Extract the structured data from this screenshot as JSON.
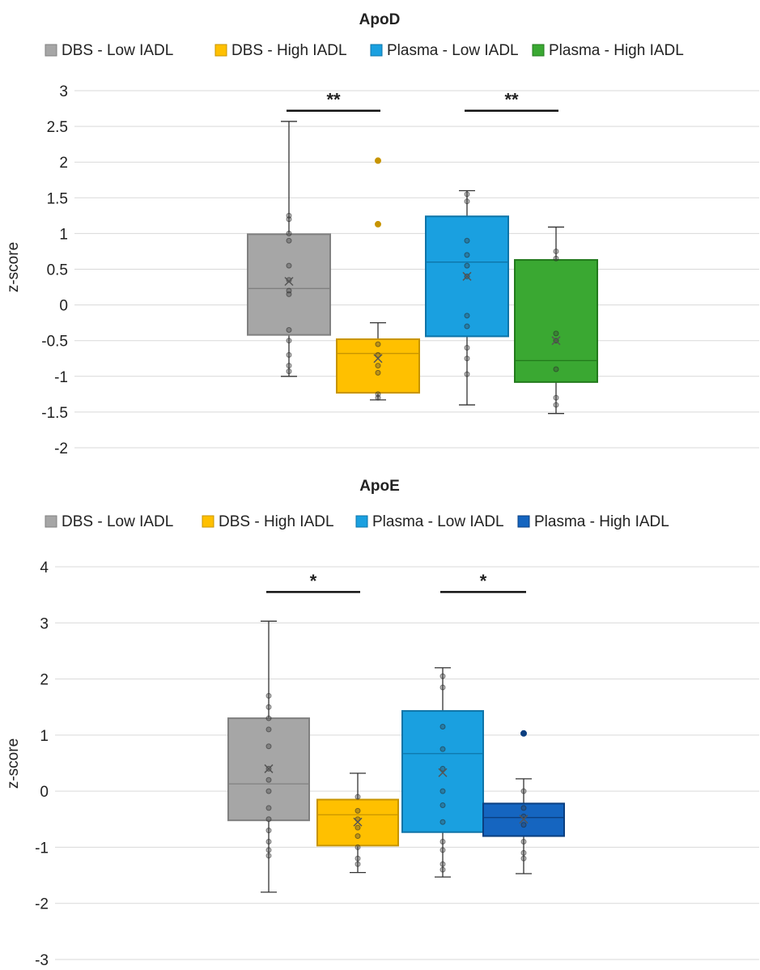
{
  "chart_data": [
    {
      "type": "box",
      "title": "ApoD",
      "ylabel": "z-score",
      "ylim": [
        -2,
        3
      ],
      "yticks": [
        3,
        2.5,
        2,
        1.5,
        1,
        0.5,
        0,
        -0.5,
        -1,
        -1.5,
        -2
      ],
      "grid": true,
      "legend_position": "top",
      "series": [
        {
          "name": "DBS - Low IADL",
          "color": "#a6a6a6",
          "edge": "#808080",
          "min": -1.0,
          "q1": -0.42,
          "median": 0.23,
          "mean": 0.33,
          "q3": 0.99,
          "max": 2.57,
          "points": [
            1.25,
            1.2,
            1.0,
            0.9,
            0.55,
            0.35,
            0.2,
            0.15,
            -0.35,
            -0.5,
            -0.7,
            -0.85,
            -0.93
          ],
          "outliers": []
        },
        {
          "name": "DBS - High IADL",
          "color": "#ffc000",
          "edge": "#c79400",
          "min": -1.33,
          "q1": -1.23,
          "median": -0.68,
          "mean": -0.75,
          "q3": -0.48,
          "max": -0.25,
          "points": [
            -0.55,
            -0.7,
            -0.85,
            -0.95,
            -1.25,
            -1.3
          ],
          "outliers": [
            2.02,
            1.13
          ]
        },
        {
          "name": "Plasma - Low IADL",
          "color": "#1aa0e0",
          "edge": "#0e74a8",
          "min": -1.4,
          "q1": -0.44,
          "median": 0.6,
          "mean": 0.4,
          "q3": 1.24,
          "max": 1.6,
          "points": [
            1.55,
            1.45,
            0.9,
            0.7,
            0.55,
            0.4,
            -0.15,
            -0.3,
            -0.6,
            -0.75,
            -0.97
          ],
          "outliers": []
        },
        {
          "name": "Plasma - High IADL",
          "color": "#3aa832",
          "edge": "#227a1c",
          "min": -1.52,
          "q1": -1.08,
          "median": -0.78,
          "mean": -0.5,
          "q3": 0.63,
          "max": 1.09,
          "points": [
            0.75,
            0.65,
            -0.4,
            -0.5,
            -0.9,
            -1.3,
            -1.4
          ],
          "outliers": []
        }
      ],
      "significance": [
        {
          "label": "**",
          "from": 0,
          "to": 1,
          "y": 2.72
        },
        {
          "label": "**",
          "from": 2,
          "to": 3,
          "y": 2.72
        }
      ]
    },
    {
      "type": "box",
      "title": "ApoE",
      "ylabel": "z-score",
      "ylim": [
        -3,
        4
      ],
      "yticks": [
        4,
        3,
        2,
        1,
        0,
        -1,
        -2,
        -3
      ],
      "grid": true,
      "legend_position": "top",
      "series": [
        {
          "name": "DBS - Low IADL",
          "color": "#a6a6a6",
          "edge": "#808080",
          "min": -1.8,
          "q1": -0.52,
          "median": 0.13,
          "mean": 0.4,
          "q3": 1.3,
          "max": 3.03,
          "points": [
            1.7,
            1.5,
            1.3,
            1.1,
            0.8,
            0.4,
            0.2,
            0.0,
            -0.3,
            -0.5,
            -0.7,
            -0.9,
            -1.05,
            -1.15
          ],
          "outliers": []
        },
        {
          "name": "DBS - High IADL",
          "color": "#ffc000",
          "edge": "#c79400",
          "min": -1.45,
          "q1": -0.97,
          "median": -0.42,
          "mean": -0.55,
          "q3": -0.15,
          "max": 0.32,
          "points": [
            -0.1,
            -0.35,
            -0.5,
            -0.65,
            -0.8,
            -1.0,
            -1.2,
            -1.3
          ],
          "outliers": []
        },
        {
          "name": "Plasma - Low IADL",
          "color": "#1aa0e0",
          "edge": "#0e74a8",
          "min": -1.53,
          "q1": -0.73,
          "median": 0.67,
          "mean": 0.33,
          "q3": 1.43,
          "max": 2.2,
          "points": [
            2.05,
            1.85,
            1.15,
            0.75,
            0.4,
            0.0,
            -0.25,
            -0.55,
            -0.9,
            -1.05,
            -1.3,
            -1.4
          ],
          "outliers": []
        },
        {
          "name": "Plasma - High IADL",
          "color": "#1565c0",
          "edge": "#0b3f80",
          "min": -1.47,
          "q1": -0.8,
          "median": -0.47,
          "mean": -0.5,
          "q3": -0.22,
          "max": 0.22,
          "points": [
            0.0,
            -0.3,
            -0.45,
            -0.6,
            -0.9,
            -1.1,
            -1.2
          ],
          "outliers": [
            1.03
          ]
        }
      ],
      "significance": [
        {
          "label": "*",
          "from": 0,
          "to": 1,
          "y": 3.55
        },
        {
          "label": "*",
          "from": 2,
          "to": 3,
          "y": 3.55
        }
      ]
    }
  ]
}
